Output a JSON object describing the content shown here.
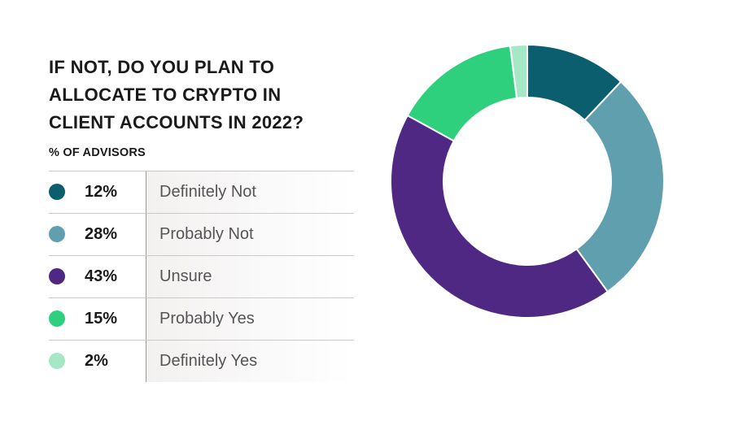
{
  "chart_data": {
    "type": "pie",
    "title_lines": [
      "IF NOT, DO YOU PLAN TO",
      "ALLOCATE TO CRYPTO IN",
      "CLIENT ACCOUNTS IN 2022?"
    ],
    "subtitle": "% OF ADVISORS",
    "categories": [
      "Definitely Not",
      "Probably Not",
      "Unsure",
      "Probably Yes",
      "Definitely Yes"
    ],
    "values": [
      12,
      28,
      43,
      15,
      2
    ],
    "value_labels": [
      "12%",
      "28%",
      "43%",
      "15%",
      "2%"
    ],
    "colors": [
      "#0b5e6e",
      "#60a0ae",
      "#4e2883",
      "#2ecf7d",
      "#a6e8c6"
    ],
    "legend_placement": "left",
    "donut": true
  }
}
